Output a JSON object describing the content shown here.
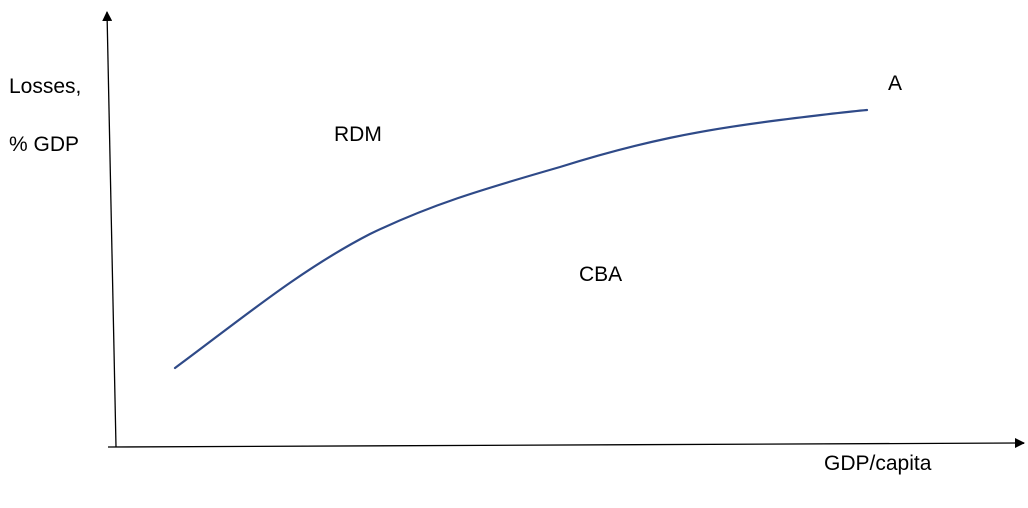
{
  "y_axis_label": {
    "line1": "Losses,",
    "line2": "% GDP"
  },
  "x_axis_label": "GDP/capita",
  "region_labels": {
    "upper": "RDM",
    "lower": "CBA"
  },
  "curve_end_label": "A",
  "colors": {
    "curve": "#2f4a88",
    "axes": "#000000",
    "text": "#000000"
  }
}
